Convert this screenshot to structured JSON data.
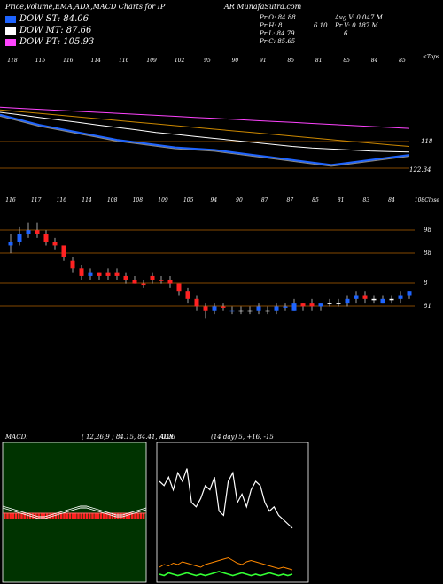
{
  "header": {
    "left": "Price,Volume,EMA,ADX,MACD Charts for IP",
    "right": "AR MunafaSutra.com"
  },
  "legend": [
    {
      "label": "DOW ST: 84.06",
      "color": "#1e64ff"
    },
    {
      "label": "DOW MT: 87.66",
      "color": "#ffffff"
    },
    {
      "label": "DOW PT: 105.93",
      "color": "#ff44ff"
    }
  ],
  "stats": {
    "pr_o": "Pr   O: 84.88",
    "pr_h": "Pr   H: 8",
    "pr_h2": "6.10",
    "pr_l": "Pr   L: 84.79",
    "pr_c": "Pr   C: 85.65",
    "avg_v": "Avg V: 0.047 M",
    "pr_v": "Pr   V: 0.187 M",
    "pr_v2": "6"
  },
  "chart_data": [
    {
      "type": "line",
      "name": "ema_panel",
      "top_tick_labels": [
        "118",
        "115",
        "116",
        "114",
        "116",
        "109",
        "102",
        "95",
        "90",
        "91",
        "85",
        "81",
        "85",
        "84",
        "85"
      ],
      "corner_label": "<Tops",
      "right_labels": [
        "118",
        "122.34"
      ],
      "series": [
        {
          "color": "#ff44ff",
          "values": [
            104.0,
            103.6,
            103.2,
            102.8,
            102.4,
            102.0,
            101.6,
            101.2,
            100.8,
            100.4,
            100.0,
            99.6,
            99.2,
            98.8,
            98.4,
            98.0,
            97.6,
            97.2,
            96.8,
            96.4,
            96.0,
            95.6
          ]
        },
        {
          "color": "#ffffff",
          "values": [
            102.0,
            101.0,
            100.0,
            99.0,
            98.0,
            97.0,
            96.0,
            95.0,
            94.0,
            93.2,
            92.4,
            91.6,
            90.8,
            90.0,
            89.2,
            88.4,
            87.8,
            87.4,
            87.0,
            86.6,
            86.4,
            86.2
          ]
        },
        {
          "color": "#cc8800",
          "values": [
            103.0,
            102.3,
            101.6,
            100.9,
            100.2,
            99.5,
            98.8,
            98.1,
            97.4,
            96.7,
            96.0,
            95.3,
            94.6,
            93.9,
            93.2,
            92.5,
            91.8,
            91.1,
            90.4,
            89.7,
            89.0,
            88.4
          ]
        },
        {
          "color": "#1e64ff",
          "values": [
            101.0,
            99.0,
            97.0,
            95.5,
            94.0,
            92.5,
            91.0,
            90.0,
            89.0,
            88.0,
            87.5,
            87.0,
            86.0,
            85.0,
            84.0,
            83.0,
            82.0,
            81.0,
            82.0,
            83.0,
            84.0,
            85.0
          ]
        },
        {
          "color": "#888888",
          "values": [
            100.5,
            98.5,
            96.5,
            95.0,
            93.5,
            92.0,
            90.5,
            89.5,
            88.5,
            87.5,
            87.0,
            86.5,
            85.5,
            84.5,
            83.5,
            82.5,
            81.5,
            80.5,
            81.5,
            82.5,
            83.5,
            84.5
          ]
        }
      ]
    },
    {
      "type": "candlestick",
      "name": "price_panel",
      "top_tick_labels": [
        "116",
        "117",
        "116",
        "114",
        "108",
        "108",
        "109",
        "105",
        "94",
        "90",
        "87",
        "87",
        "85",
        "81",
        "83",
        "84"
      ],
      "corner_label": "108Close",
      "right_labels": [
        "98",
        "88",
        "8",
        "81"
      ],
      "candles": [
        {
          "o": 97,
          "h": 100,
          "l": 95,
          "c": 98,
          "color": "#1e64ff"
        },
        {
          "o": 98,
          "h": 102,
          "l": 97,
          "c": 100,
          "color": "#1e64ff"
        },
        {
          "o": 100,
          "h": 103,
          "l": 99,
          "c": 101,
          "color": "#1e64ff"
        },
        {
          "o": 101,
          "h": 103,
          "l": 99,
          "c": 100,
          "color": "#ff2222"
        },
        {
          "o": 100,
          "h": 101,
          "l": 97,
          "c": 98,
          "color": "#ff2222"
        },
        {
          "o": 98,
          "h": 99,
          "l": 96,
          "c": 97,
          "color": "#ff2222"
        },
        {
          "o": 97,
          "h": 97,
          "l": 93,
          "c": 94,
          "color": "#ff2222"
        },
        {
          "o": 93,
          "h": 94,
          "l": 90,
          "c": 91,
          "color": "#ff2222"
        },
        {
          "o": 91,
          "h": 92,
          "l": 88,
          "c": 89,
          "color": "#ff2222"
        },
        {
          "o": 89,
          "h": 91,
          "l": 88,
          "c": 90,
          "color": "#1e64ff"
        },
        {
          "o": 90,
          "h": 90,
          "l": 88,
          "c": 89,
          "color": "#ff2222"
        },
        {
          "o": 89,
          "h": 91,
          "l": 88,
          "c": 90,
          "color": "#ff2222"
        },
        {
          "o": 90,
          "h": 91,
          "l": 88,
          "c": 89,
          "color": "#ff2222"
        },
        {
          "o": 89,
          "h": 90,
          "l": 87,
          "c": 88,
          "color": "#ff2222"
        },
        {
          "o": 88,
          "h": 89,
          "l": 87,
          "c": 87,
          "color": "#ff2222"
        },
        {
          "o": 87,
          "h": 88,
          "l": 86,
          "c": 87,
          "color": "#ff2222"
        },
        {
          "o": 88,
          "h": 90,
          "l": 87,
          "c": 89,
          "color": "#ff2222"
        },
        {
          "o": 88,
          "h": 89,
          "l": 87,
          "c": 88,
          "color": "#ff2222"
        },
        {
          "o": 88,
          "h": 89,
          "l": 86,
          "c": 87,
          "color": "#ff2222"
        },
        {
          "o": 87,
          "h": 87,
          "l": 84,
          "c": 85,
          "color": "#ff2222"
        },
        {
          "o": 85,
          "h": 86,
          "l": 82,
          "c": 83,
          "color": "#ff2222"
        },
        {
          "o": 83,
          "h": 84,
          "l": 80,
          "c": 81,
          "color": "#ff2222"
        },
        {
          "o": 81,
          "h": 82,
          "l": 78,
          "c": 80,
          "color": "#ff2222"
        },
        {
          "o": 80,
          "h": 82,
          "l": 79,
          "c": 81,
          "color": "#1e64ff"
        },
        {
          "o": 81,
          "h": 82,
          "l": 80,
          "c": 81,
          "color": "#ff2222"
        },
        {
          "o": 80,
          "h": 81,
          "l": 79,
          "c": 80,
          "color": "#1e64ff"
        },
        {
          "o": 80,
          "h": 81,
          "l": 79,
          "c": 80,
          "color": "#ffffff"
        },
        {
          "o": 80,
          "h": 81,
          "l": 79,
          "c": 80,
          "color": "#ffffff"
        },
        {
          "o": 80,
          "h": 82,
          "l": 79,
          "c": 81,
          "color": "#1e64ff"
        },
        {
          "o": 80,
          "h": 81,
          "l": 79,
          "c": 80,
          "color": "#ffffff"
        },
        {
          "o": 80,
          "h": 82,
          "l": 79,
          "c": 81,
          "color": "#1e64ff"
        },
        {
          "o": 81,
          "h": 82,
          "l": 80,
          "c": 81,
          "color": "#1e64ff"
        },
        {
          "o": 80,
          "h": 83,
          "l": 80,
          "c": 82,
          "color": "#1e64ff"
        },
        {
          "o": 81,
          "h": 82,
          "l": 80,
          "c": 82,
          "color": "#ff2222"
        },
        {
          "o": 81,
          "h": 83,
          "l": 80,
          "c": 82,
          "color": "#ff2222"
        },
        {
          "o": 81,
          "h": 82,
          "l": 80,
          "c": 82,
          "color": "#1e64ff"
        },
        {
          "o": 82,
          "h": 83,
          "l": 81,
          "c": 82,
          "color": "#ffffff"
        },
        {
          "o": 82,
          "h": 83,
          "l": 81,
          "c": 82,
          "color": "#ffffff"
        },
        {
          "o": 82,
          "h": 84,
          "l": 81,
          "c": 83,
          "color": "#1e64ff"
        },
        {
          "o": 83,
          "h": 85,
          "l": 82,
          "c": 84,
          "color": "#1e64ff"
        },
        {
          "o": 84,
          "h": 85,
          "l": 82,
          "c": 83,
          "color": "#ff2222"
        },
        {
          "o": 83,
          "h": 84,
          "l": 82,
          "c": 83,
          "color": "#ffffff"
        },
        {
          "o": 82,
          "h": 84,
          "l": 82,
          "c": 83,
          "color": "#1e64ff"
        },
        {
          "o": 83,
          "h": 84,
          "l": 82,
          "c": 83,
          "color": "#ffffff"
        },
        {
          "o": 83,
          "h": 85,
          "l": 82,
          "c": 84,
          "color": "#1e64ff"
        },
        {
          "o": 84,
          "h": 85,
          "l": 83,
          "c": 85,
          "color": "#1e64ff"
        }
      ]
    },
    {
      "type": "line",
      "name": "macd_panel",
      "title": "MACD:",
      "params": "( 12,26,9 ) 84.15, 84.41, -0.26",
      "background": "#003300",
      "histogram": [
        -6,
        -6,
        -6,
        -6,
        -6,
        -6,
        -6,
        -6,
        -6,
        -6,
        -6,
        -6,
        -6,
        -6,
        -6,
        -6,
        -6,
        -6,
        -6,
        -6,
        -6,
        -6,
        -6,
        -6,
        -6,
        -6,
        -6,
        -6,
        -6,
        -6,
        -6,
        -6,
        -6,
        -6,
        -6,
        -6,
        -6,
        -6,
        -6,
        -6,
        -6,
        -6,
        -6,
        -6,
        -6,
        -6,
        -6,
        -6,
        -6,
        -6
      ],
      "series": [
        {
          "color": "#ffffff",
          "values": [
            2,
            1,
            0,
            -1,
            -2,
            -3,
            -4,
            -4,
            -3,
            -2,
            -1,
            0,
            1,
            2,
            2,
            1,
            0,
            -1,
            -2,
            -3,
            -3,
            -2,
            -1,
            0,
            1
          ]
        },
        {
          "color": "#ffffff",
          "values": [
            1,
            0,
            -1,
            -2,
            -3,
            -4,
            -5,
            -5,
            -4,
            -3,
            -2,
            -1,
            0,
            1,
            1,
            0,
            -1,
            -2,
            -3,
            -4,
            -4,
            -3,
            -2,
            -1,
            0
          ]
        }
      ]
    },
    {
      "type": "line",
      "name": "adx_panel",
      "title": "ADX",
      "params": "(14 day) 5, +16, -15",
      "series": [
        {
          "color": "#ffffff",
          "values": [
            40,
            38,
            42,
            36,
            44,
            40,
            46,
            30,
            28,
            32,
            38,
            36,
            42,
            26,
            24,
            40,
            44,
            30,
            34,
            28,
            36,
            40,
            38,
            30,
            26,
            28,
            24,
            22,
            20,
            18
          ]
        },
        {
          "color": "#ff8800",
          "values": [
            6,
            8,
            7,
            9,
            8,
            10,
            9,
            8,
            7,
            6,
            8,
            9,
            10,
            11,
            12,
            13,
            11,
            9,
            8,
            10,
            11,
            10,
            9,
            8,
            7,
            6,
            5,
            6,
            5,
            4
          ]
        },
        {
          "color": "#33ff33",
          "values": [
            2,
            1,
            3,
            2,
            1,
            2,
            3,
            2,
            1,
            2,
            1,
            2,
            3,
            4,
            3,
            2,
            1,
            2,
            3,
            2,
            1,
            2,
            1,
            2,
            3,
            2,
            1,
            2,
            1,
            2
          ]
        }
      ]
    }
  ]
}
